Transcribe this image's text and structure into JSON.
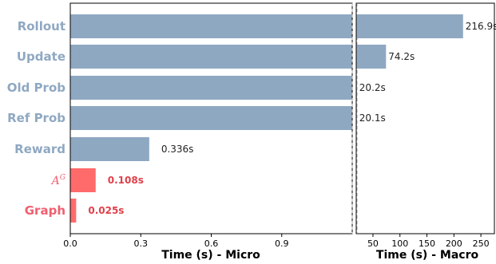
{
  "chart_data": {
    "type": "bar",
    "orientation": "horizontal",
    "categories": [
      "Rollout",
      "Update",
      "Old Prob",
      "Ref Prob",
      "Reward",
      "A^G",
      "Graph"
    ],
    "category_display": [
      "Rollout",
      "Update",
      "Old Prob",
      "Ref Prob",
      "Reward",
      "A",
      "Graph"
    ],
    "category_superscript": [
      "",
      "",
      "",
      "",
      "",
      "G",
      ""
    ],
    "values": [
      216.9,
      74.2,
      20.2,
      20.1,
      0.336,
      0.108,
      0.025
    ],
    "value_labels": [
      "216.9s",
      "74.2s",
      "20.2s",
      "20.1s",
      "0.336s",
      "0.108s",
      "0.025s"
    ],
    "highlighted": [
      false,
      false,
      false,
      false,
      false,
      true,
      true
    ],
    "colors": {
      "normal": "#8fa8c2",
      "highlight": "#ff6b6b",
      "normal_label": "#8fa8c2",
      "highlight_label": "#f06070"
    },
    "panels": [
      {
        "xlabel": "Time (s) - Micro",
        "xlim": [
          0,
          1.2
        ],
        "ticks": [
          0.0,
          0.3,
          0.6,
          0.9
        ],
        "tick_labels": [
          "0.0",
          "0.3",
          "0.6",
          "0.9"
        ]
      },
      {
        "xlabel": "Time (s) - Macro",
        "xlim": [
          19,
          275
        ],
        "ticks": [
          50,
          100,
          150,
          200,
          250
        ],
        "tick_labels": [
          "50",
          "100",
          "150",
          "200",
          "250"
        ]
      }
    ],
    "broken_axis": true,
    "grid": false,
    "legend": "none"
  }
}
